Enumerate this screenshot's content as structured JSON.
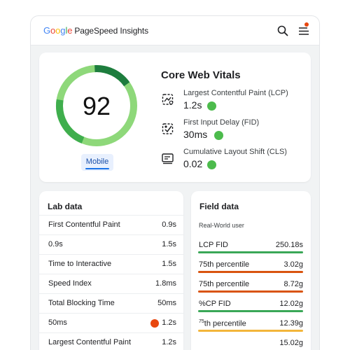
{
  "header": {
    "brand_letters": [
      "G",
      "o",
      "o",
      "g",
      "l",
      "e"
    ],
    "product": "PageSpeed Insights",
    "icons": {
      "search": "search-icon",
      "menu": "menu-icon"
    },
    "notification_color": "#e8470f"
  },
  "summary": {
    "score": "92",
    "score_fraction": 0.92,
    "device_tab": "Mobile",
    "title": "Core Web Vitals",
    "metrics": [
      {
        "label": "Largest Contentful Paint (LCP)",
        "value": "1.2s",
        "icon": "lcp-icon",
        "status": "good"
      },
      {
        "label": "First Input Delay (FID)",
        "value": "30ms",
        "icon": "fid-icon",
        "status": "good"
      },
      {
        "label": "Cumulative Layout Shift (CLS)",
        "value": "0.02",
        "icon": "cls-icon",
        "status": "good"
      }
    ]
  },
  "lab": {
    "title": "Lab data",
    "rows": [
      {
        "label": "First Contentful Paint",
        "value": "0.9s"
      },
      {
        "label": "0.9s",
        "value": "1.5s"
      },
      {
        "label": "Time to Interactive",
        "value": "1.5s"
      },
      {
        "label": "Speed Index",
        "value": "1.8ms"
      },
      {
        "label": "Total Blocking Time",
        "value": "50ms"
      },
      {
        "label": "50ms",
        "value": "1.2s",
        "status": "poor"
      },
      {
        "label": "Largest Contentful Paint",
        "value": "1.2s"
      }
    ]
  },
  "field": {
    "title": "Field data",
    "subtitle": "Real-World user",
    "rows": [
      {
        "label": "LCP FID",
        "value": "250.18s",
        "bar": "#3aa757"
      },
      {
        "label": "75th percentile",
        "value": "3.02g",
        "bar": "#d9540f"
      },
      {
        "label": "75th percentile",
        "value": "8.72g",
        "bar": "#d9540f"
      },
      {
        "label": "%CP FID",
        "value": "12.02g",
        "bar": "#3aa757"
      },
      {
        "label_sup": "75",
        "label": "th percentile",
        "value": "12.39g",
        "bar": "#f3b53a"
      },
      {
        "label": "",
        "value": "15.02g",
        "bar": ""
      }
    ]
  },
  "colors": {
    "good": "#4cbb4c",
    "poor": "#e8470f",
    "gauge_light": "#8ed87a",
    "gauge_mid": "#3fae4d",
    "gauge_dark": "#1e7d3e"
  }
}
